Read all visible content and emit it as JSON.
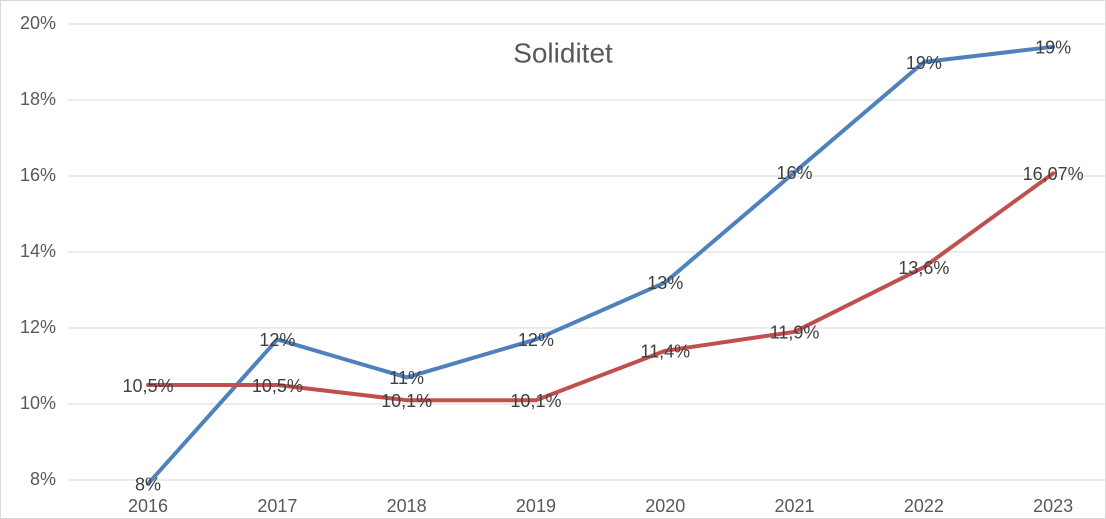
{
  "chart_data": {
    "type": "line",
    "title": "Soliditet",
    "categories": [
      "2016",
      "2017",
      "2018",
      "2019",
      "2020",
      "2021",
      "2022",
      "2023"
    ],
    "series": [
      {
        "color": "#4f81bd",
        "values": [
          7.9,
          11.7,
          10.7,
          11.7,
          13.2,
          16.1,
          19.0,
          19.4
        ],
        "value_labels": [
          "8%",
          "12%",
          "11%",
          "12%",
          "13%",
          "16%",
          "19%",
          "19%"
        ]
      },
      {
        "color": "#c0504d",
        "values": [
          10.5,
          10.5,
          10.1,
          10.1,
          11.4,
          11.9,
          13.6,
          16.07
        ],
        "value_labels": [
          "10,5%",
          "10,5%",
          "10,1%",
          "10,1%",
          "11,4%",
          "11,9%",
          "13,6%",
          "16,07%"
        ]
      }
    ],
    "ylim": [
      8,
      20
    ],
    "yticks": [
      {
        "value": 8,
        "label": "8%"
      },
      {
        "value": 10,
        "label": "10%"
      },
      {
        "value": 12,
        "label": "12%"
      },
      {
        "value": 14,
        "label": "14%"
      },
      {
        "value": 16,
        "label": "16%"
      },
      {
        "value": 18,
        "label": "18%"
      },
      {
        "value": 20,
        "label": "20%"
      }
    ],
    "grid": true
  }
}
